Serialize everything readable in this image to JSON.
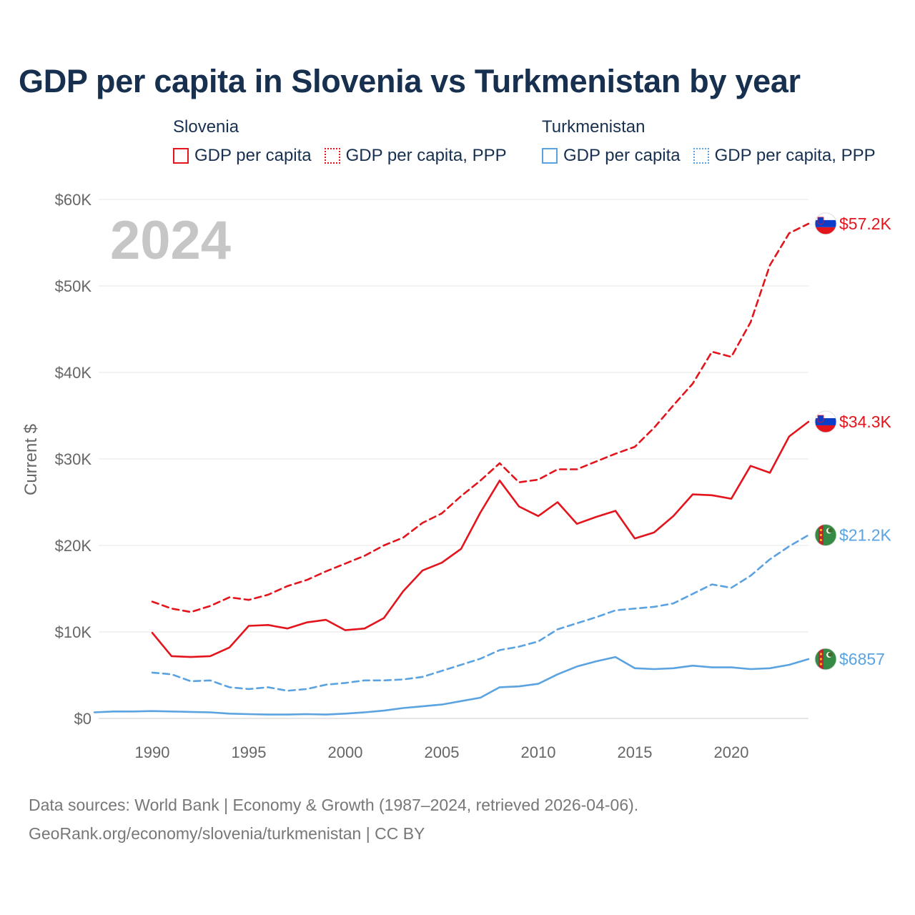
{
  "title": "GDP per capita in Slovenia vs Turkmenistan by year",
  "legend": {
    "groups": [
      {
        "country": "Slovenia",
        "color": "#e3141c",
        "items": [
          {
            "label": "GDP per capita",
            "style": "solid"
          },
          {
            "label": "GDP per capita, PPP",
            "style": "dotted"
          }
        ]
      },
      {
        "country": "Turkmenistan",
        "color": "#5ba3e0",
        "items": [
          {
            "label": "GDP per capita",
            "style": "solid"
          },
          {
            "label": "GDP per capita, PPP",
            "style": "dotted"
          }
        ]
      }
    ]
  },
  "year_watermark": "2024",
  "footer": {
    "line1": "Data sources: World Bank | Economy & Growth (1987–2024, retrieved 2026-04-06).",
    "line2": "GeoRank.org/economy/slovenia/turkmenistan | CC BY"
  },
  "chart_data": {
    "type": "line",
    "ylabel": "Current $",
    "xlabel": "",
    "xlim": [
      1987,
      2024
    ],
    "ylim": [
      0,
      60000
    ],
    "xticks": [
      1990,
      1995,
      2000,
      2005,
      2010,
      2015,
      2020
    ],
    "yticks": [
      {
        "value": 0,
        "label": "$0"
      },
      {
        "value": 10000,
        "label": "$10K"
      },
      {
        "value": 20000,
        "label": "$20K"
      },
      {
        "value": 30000,
        "label": "$30K"
      },
      {
        "value": 40000,
        "label": "$40K"
      },
      {
        "value": 50000,
        "label": "$50K"
      },
      {
        "value": 60000,
        "label": "$60K"
      }
    ],
    "grid": true,
    "series": [
      {
        "name": "Slovenia GDP per capita, PPP",
        "country": "Slovenia",
        "color": "#e3141c",
        "dash": true,
        "end_label": "$57.2K",
        "flag": "slovenia",
        "x": [
          1990,
          1991,
          1992,
          1993,
          1994,
          1995,
          1996,
          1997,
          1998,
          1999,
          2000,
          2001,
          2002,
          2003,
          2004,
          2005,
          2006,
          2007,
          2008,
          2009,
          2010,
          2011,
          2012,
          2013,
          2014,
          2015,
          2016,
          2017,
          2018,
          2019,
          2020,
          2021,
          2022,
          2023,
          2024
        ],
        "y": [
          13500,
          12700,
          12300,
          13000,
          14000,
          13700,
          14300,
          15300,
          16000,
          17000,
          17900,
          18800,
          20000,
          20900,
          22600,
          23700,
          25700,
          27500,
          29500,
          27300,
          27600,
          28800,
          28800,
          29700,
          30600,
          31400,
          33600,
          36200,
          38700,
          42400,
          41800,
          45800,
          52400,
          56100,
          57200
        ]
      },
      {
        "name": "Slovenia GDP per capita",
        "country": "Slovenia",
        "color": "#e3141c",
        "dash": false,
        "end_label": "$34.3K",
        "flag": "slovenia",
        "x": [
          1990,
          1991,
          1992,
          1993,
          1994,
          1995,
          1996,
          1997,
          1998,
          1999,
          2000,
          2001,
          2002,
          2003,
          2004,
          2005,
          2006,
          2007,
          2008,
          2009,
          2010,
          2011,
          2012,
          2013,
          2014,
          2015,
          2016,
          2017,
          2018,
          2019,
          2020,
          2021,
          2022,
          2023,
          2024
        ],
        "y": [
          9900,
          7200,
          7100,
          7200,
          8200,
          10700,
          10800,
          10400,
          11100,
          11400,
          10200,
          10400,
          11600,
          14700,
          17100,
          18000,
          19600,
          23800,
          27500,
          24500,
          23400,
          25000,
          22500,
          23300,
          24000,
          20800,
          21500,
          23400,
          25900,
          25800,
          25400,
          29200,
          28400,
          32600,
          34300
        ]
      },
      {
        "name": "Turkmenistan GDP per capita, PPP",
        "country": "Turkmenistan",
        "color": "#5ba3e0",
        "dash": true,
        "end_label": "$21.2K",
        "flag": "turkmenistan",
        "x": [
          1990,
          1991,
          1992,
          1993,
          1994,
          1995,
          1996,
          1997,
          1998,
          1999,
          2000,
          2001,
          2002,
          2003,
          2004,
          2005,
          2006,
          2007,
          2008,
          2009,
          2010,
          2011,
          2012,
          2013,
          2014,
          2015,
          2016,
          2017,
          2018,
          2019,
          2020,
          2021,
          2022,
          2023,
          2024
        ],
        "y": [
          5300,
          5100,
          4300,
          4400,
          3600,
          3400,
          3600,
          3200,
          3400,
          3900,
          4100,
          4400,
          4400,
          4500,
          4800,
          5500,
          6200,
          6900,
          7900,
          8300,
          8900,
          10300,
          11000,
          11700,
          12500,
          12700,
          12900,
          13300,
          14400,
          15500,
          15100,
          16500,
          18400,
          19900,
          21200
        ]
      },
      {
        "name": "Turkmenistan GDP per capita",
        "country": "Turkmenistan",
        "color": "#5ba3e0",
        "dash": false,
        "end_label": "$6857",
        "flag": "turkmenistan",
        "x": [
          1987,
          1988,
          1989,
          1990,
          1991,
          1992,
          1993,
          1994,
          1995,
          1996,
          1997,
          1998,
          1999,
          2000,
          2001,
          2002,
          2003,
          2004,
          2005,
          2006,
          2007,
          2008,
          2009,
          2010,
          2011,
          2012,
          2013,
          2014,
          2015,
          2016,
          2017,
          2018,
          2019,
          2020,
          2021,
          2022,
          2023,
          2024
        ],
        "y": [
          700,
          800,
          800,
          850,
          800,
          750,
          700,
          550,
          500,
          450,
          450,
          500,
          450,
          550,
          700,
          900,
          1200,
          1400,
          1600,
          2000,
          2400,
          3600,
          3700,
          4000,
          5100,
          6000,
          6600,
          7100,
          5800,
          5700,
          5800,
          6100,
          5900,
          5900,
          5700,
          5800,
          6200,
          6857
        ]
      }
    ]
  }
}
